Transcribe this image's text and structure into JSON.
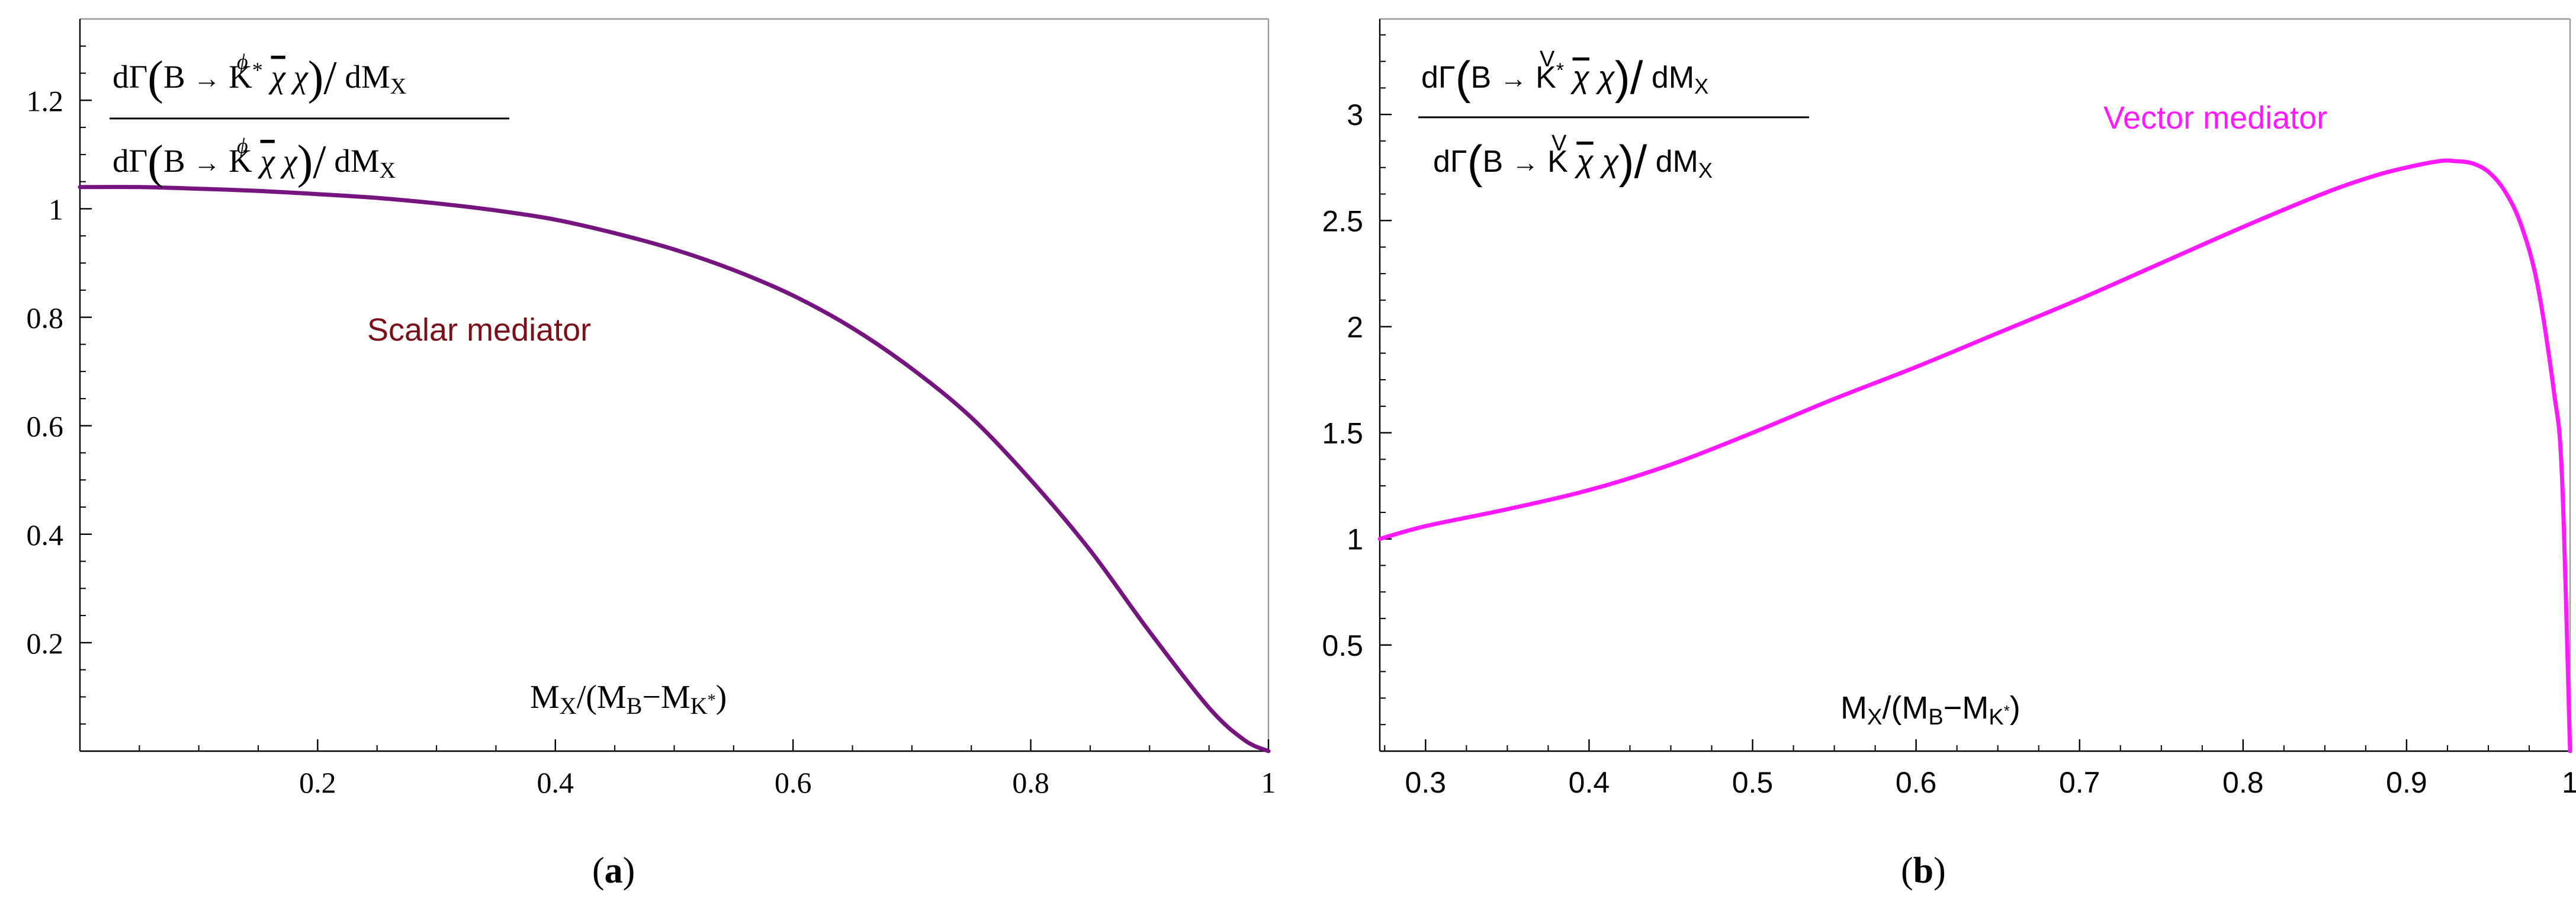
{
  "chart_data": [
    {
      "type": "line",
      "panel_label": "(a)",
      "annotation": "Scalar mediator",
      "xlabel": "M_X/(M_B−M_{K*})",
      "ylabel": "dΓ(B →φ K* χ̄ χ)/dM_X ÷ dΓ(B →φ K χ̄ χ)/dM_X",
      "xlim": [
        0.0,
        1.0
      ],
      "ylim": [
        0.0,
        1.35
      ],
      "xticks": [
        0.2,
        0.4,
        0.6,
        0.8,
        1
      ],
      "xticklabels": [
        "0.2",
        "0.4",
        "0.6",
        "0.8",
        "1"
      ],
      "yticks": [
        0.2,
        0.4,
        0.6,
        0.8,
        1,
        1.2
      ],
      "yticklabels": [
        "0.2",
        "0.4",
        "0.6",
        "0.8",
        "1",
        "1.2"
      ],
      "grid": false,
      "color": "#76157f",
      "annotation_color": "#7a1019",
      "series": [
        {
          "x": [
            0.0,
            0.05,
            0.1,
            0.15,
            0.2,
            0.25,
            0.3,
            0.35,
            0.4,
            0.45,
            0.5,
            0.55,
            0.6,
            0.65,
            0.7,
            0.75,
            0.8,
            0.85,
            0.9,
            0.95,
            0.98,
            1.0
          ],
          "y": [
            1.04,
            1.04,
            1.037,
            1.033,
            1.027,
            1.02,
            1.01,
            0.997,
            0.98,
            0.955,
            0.925,
            0.887,
            0.84,
            0.78,
            0.705,
            0.615,
            0.5,
            0.37,
            0.22,
            0.08,
            0.02,
            0.0
          ]
        }
      ]
    },
    {
      "type": "line",
      "panel_label": "(b)",
      "annotation": "Vector mediator",
      "xlabel": "M_X/(M_B−M_{K*})",
      "ylabel": "dΓ(B →V K* χ̄ χ)/dM_X ÷ dΓ(B →V K χ̄ χ)/dM_X",
      "xlim": [
        0.272,
        1.0
      ],
      "ylim": [
        0.0,
        3.45
      ],
      "xticks": [
        0.3,
        0.4,
        0.5,
        0.6,
        0.7,
        0.8,
        0.9,
        1
      ],
      "xticklabels": [
        "0.3",
        "0.4",
        "0.5",
        "0.6",
        "0.7",
        "0.8",
        "0.9",
        "1"
      ],
      "yticks": [
        0.5,
        1,
        1.5,
        2,
        2.5,
        3
      ],
      "yticklabels": [
        "0.5",
        "1",
        "1.5",
        "2",
        "2.5",
        "3"
      ],
      "grid": false,
      "color": "#ff19ff",
      "annotation_color": "#ff19ff",
      "series": [
        {
          "x": [
            0.272,
            0.3,
            0.35,
            0.4,
            0.45,
            0.5,
            0.55,
            0.6,
            0.65,
            0.7,
            0.75,
            0.8,
            0.85,
            0.88,
            0.9,
            0.92,
            0.93,
            0.94,
            0.95,
            0.96,
            0.97,
            0.98,
            0.99,
            0.995,
            1.0
          ],
          "y": [
            1.0,
            1.06,
            1.14,
            1.23,
            1.35,
            1.5,
            1.66,
            1.81,
            1.97,
            2.13,
            2.3,
            2.47,
            2.63,
            2.71,
            2.75,
            2.78,
            2.78,
            2.77,
            2.73,
            2.64,
            2.48,
            2.2,
            1.7,
            1.3,
            0.0
          ]
        }
      ]
    }
  ]
}
